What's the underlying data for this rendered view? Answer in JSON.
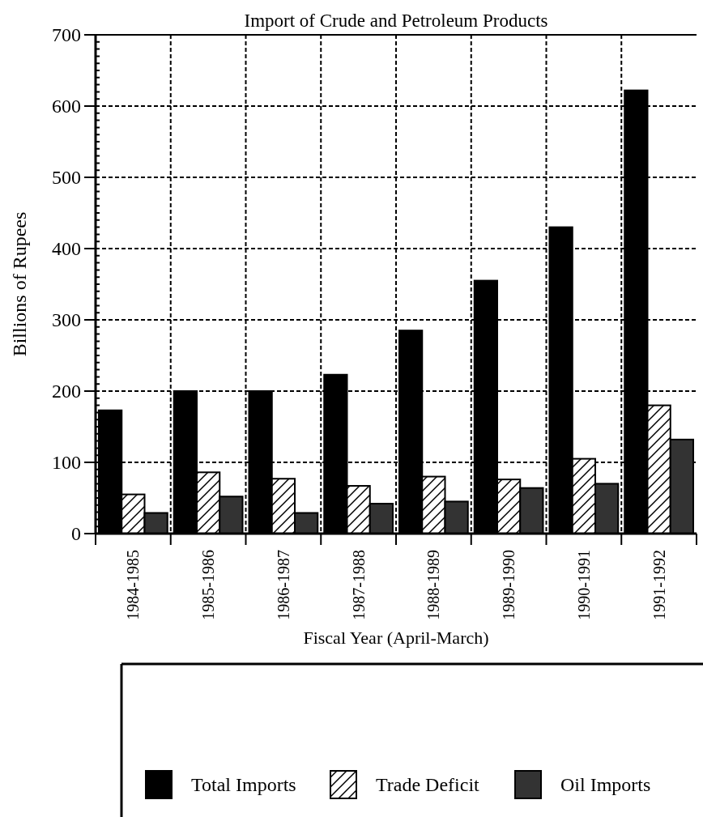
{
  "chart_data": {
    "type": "bar",
    "title": "Import of Crude and Petroleum Products",
    "xlabel": "Fiscal Year (April-March)",
    "ylabel": "Billions of Rupees",
    "categories": [
      "1984-1985",
      "1985-1986",
      "1986-1987",
      "1987-1988",
      "1988-1989",
      "1989-1990",
      "1990-1991",
      "1991-1992"
    ],
    "series": [
      {
        "name": "Total Imports",
        "color": "#000000",
        "values": [
          173,
          200,
          200,
          223,
          285,
          355,
          430,
          622
        ]
      },
      {
        "name": "Trade Deficit",
        "color": "#ffffff",
        "values": [
          55,
          86,
          77,
          67,
          80,
          76,
          105,
          180
        ]
      },
      {
        "name": "Oil Imports",
        "color": "#333333",
        "values": [
          29,
          52,
          29,
          42,
          45,
          64,
          70,
          132
        ]
      }
    ],
    "ylim": [
      0,
      700
    ],
    "yticks": [
      0,
      {
        "value": 10,
        "label": null
      },
      {
        "value": 20,
        "label": null
      },
      {
        "value": 30,
        "label": null
      },
      {
        "value": 40,
        "label": null
      },
      {
        "value": 50,
        "label": null
      },
      {
        "value": 60,
        "label": null
      },
      {
        "value": 70,
        "label": null
      },
      {
        "value": 80,
        "label": null
      },
      {
        "value": 90,
        "label": null
      },
      100,
      {
        "value": 110,
        "label": null
      },
      {
        "value": 120,
        "label": null
      },
      {
        "value": 130,
        "label": null
      },
      {
        "value": 140,
        "label": null
      },
      {
        "value": 150,
        "label": null
      },
      {
        "value": 160,
        "label": null
      },
      {
        "value": 170,
        "label": null
      },
      {
        "value": 180,
        "label": null
      },
      {
        "value": 190,
        "label": null
      },
      200,
      {
        "value": 210,
        "label": null
      },
      {
        "value": 220,
        "label": null
      },
      {
        "value": 230,
        "label": null
      },
      {
        "value": 240,
        "label": null
      },
      {
        "value": 250,
        "label": null
      },
      {
        "value": 260,
        "label": null
      },
      {
        "value": 270,
        "label": null
      },
      {
        "value": 280,
        "label": null
      },
      {
        "value": 290,
        "label": null
      },
      300,
      {
        "value": 310,
        "label": null
      },
      {
        "value": 320,
        "label": null
      },
      {
        "value": 330,
        "label": null
      },
      {
        "value": 340,
        "label": null
      },
      {
        "value": 350,
        "label": null
      },
      {
        "value": 360,
        "label": null
      },
      {
        "value": 370,
        "label": null
      },
      {
        "value": 380,
        "label": null
      },
      {
        "value": 390,
        "label": null
      },
      400,
      {
        "value": 410,
        "label": null
      },
      {
        "value": 420,
        "label": null
      },
      {
        "value": 430,
        "label": null
      },
      {
        "value": 440,
        "label": null
      },
      {
        "value": 450,
        "label": null
      },
      {
        "value": 460,
        "label": null
      },
      {
        "value": 470,
        "label": null
      },
      {
        "value": 480,
        "label": null
      },
      {
        "value": 490,
        "label": null
      },
      500,
      {
        "value": 510,
        "label": null
      },
      {
        "value": 520,
        "label": null
      },
      {
        "value": 530,
        "label": null
      },
      {
        "value": 540,
        "label": null
      },
      {
        "value": 550,
        "label": null
      },
      {
        "value": 560,
        "label": null
      },
      {
        "value": 570,
        "label": null
      },
      {
        "value": 580,
        "label": null
      },
      {
        "value": 590,
        "label": null
      },
      600,
      {
        "value": 610,
        "label": null
      },
      {
        "value": 620,
        "label": null
      },
      {
        "value": 630,
        "label": null
      },
      {
        "value": 640,
        "label": null
      },
      {
        "value": 650,
        "label": null
      },
      {
        "value": 660,
        "label": null
      },
      {
        "value": 670,
        "label": null
      },
      {
        "value": 680,
        "label": null
      },
      {
        "value": 690,
        "label": null
      },
      700
    ],
    "grid": true,
    "legend": "bottom"
  }
}
